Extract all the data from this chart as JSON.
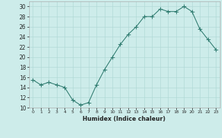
{
  "x": [
    0,
    1,
    2,
    3,
    4,
    5,
    6,
    7,
    8,
    9,
    10,
    11,
    12,
    13,
    14,
    15,
    16,
    17,
    18,
    19,
    20,
    21,
    22,
    23
  ],
  "y": [
    15.5,
    14.5,
    15.0,
    14.5,
    14.0,
    11.5,
    10.5,
    11.0,
    14.5,
    17.5,
    20.0,
    22.5,
    24.5,
    26.0,
    28.0,
    28.0,
    29.5,
    29.0,
    29.0,
    30.0,
    29.0,
    25.5,
    23.5,
    21.5
  ],
  "line_color": "#2d7a6e",
  "marker": "+",
  "marker_size": 4,
  "background_color": "#cdecea",
  "grid_color": "#b0d8d5",
  "xlabel": "Humidex (Indice chaleur)",
  "ylim": [
    10,
    31
  ],
  "xlim": [
    -0.5,
    23.5
  ],
  "yticks": [
    10,
    12,
    14,
    16,
    18,
    20,
    22,
    24,
    26,
    28,
    30
  ],
  "xticks": [
    0,
    1,
    2,
    3,
    4,
    5,
    6,
    7,
    8,
    9,
    10,
    11,
    12,
    13,
    14,
    15,
    16,
    17,
    18,
    19,
    20,
    21,
    22,
    23
  ]
}
